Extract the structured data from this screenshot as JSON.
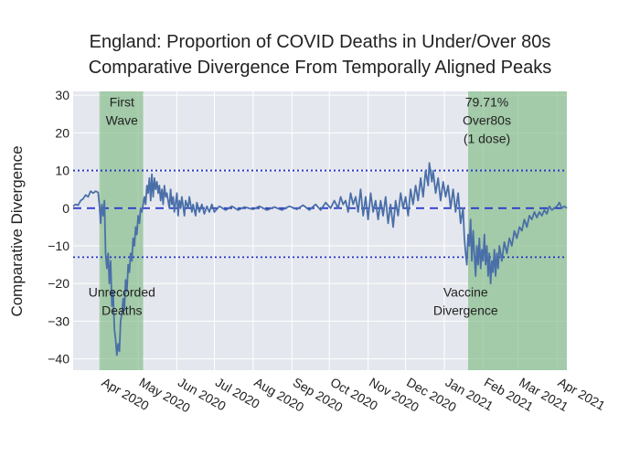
{
  "chart_data": {
    "type": "line",
    "title": [
      "England: Proportion of COVID Deaths in Under/Over 80s",
      "Comparative Divergence From Temporally Aligned Peaks"
    ],
    "ylabel": "Comparative Divergence",
    "xlabel": "",
    "xlim": [
      "2020-03-10",
      "2021-04-09"
    ],
    "ylim": [
      -43,
      31
    ],
    "yticks": [
      30,
      20,
      10,
      0,
      -10,
      -20,
      -30,
      -40
    ],
    "xticks": [
      {
        "date": "2020-04-01",
        "label": "Apr 2020"
      },
      {
        "date": "2020-05-01",
        "label": "May 2020"
      },
      {
        "date": "2020-06-01",
        "label": "Jun 2020"
      },
      {
        "date": "2020-07-01",
        "label": "Jul 2020"
      },
      {
        "date": "2020-08-01",
        "label": "Aug 2020"
      },
      {
        "date": "2020-09-01",
        "label": "Sep 2020"
      },
      {
        "date": "2020-10-01",
        "label": "Oct 2020"
      },
      {
        "date": "2020-11-01",
        "label": "Nov 2020"
      },
      {
        "date": "2020-12-01",
        "label": "Dec 2020"
      },
      {
        "date": "2021-01-01",
        "label": "Jan 2021"
      },
      {
        "date": "2021-02-01",
        "label": "Feb 2021"
      },
      {
        "date": "2021-03-01",
        "label": "Mar 2021"
      },
      {
        "date": "2021-04-01",
        "label": "Apr 2021"
      }
    ],
    "shaded_regions": [
      {
        "x0": "2020-03-31",
        "x1": "2020-05-05",
        "color": "#7ab87e"
      },
      {
        "x0": "2021-01-20",
        "x1": "2021-04-09",
        "color": "#7ab87e"
      }
    ],
    "reference_lines": [
      {
        "y": 10,
        "style": "dotted",
        "color": "#2233cc"
      },
      {
        "y": 0,
        "style": "dashed",
        "color": "#2233cc"
      },
      {
        "y": -13,
        "style": "dotted",
        "color": "#2233cc"
      }
    ],
    "annotations": [
      {
        "text": [
          "First",
          "Wave"
        ],
        "x": "2020-04-18",
        "y": 27
      },
      {
        "text": [
          "Unrecorded",
          "Deaths"
        ],
        "x": "2020-04-18",
        "y": -23.5
      },
      {
        "text": [
          "79.71%",
          "Over80s",
          "(1 dose)"
        ],
        "x": "2021-02-04",
        "y": 27
      },
      {
        "text": [
          "Vaccine",
          "Divergence"
        ],
        "x": "2021-01-18",
        "y": -23.5
      }
    ],
    "series": [
      {
        "color": "#4a6fa8",
        "points": [
          [
            "2020-03-10",
            0.5
          ],
          [
            "2020-03-12",
            1
          ],
          [
            "2020-03-14",
            0.8
          ],
          [
            "2020-03-16",
            2
          ],
          [
            "2020-03-18",
            2.5
          ],
          [
            "2020-03-20",
            3.5
          ],
          [
            "2020-03-22",
            3
          ],
          [
            "2020-03-24",
            4.5
          ],
          [
            "2020-03-26",
            4
          ],
          [
            "2020-03-28",
            4.5
          ],
          [
            "2020-03-30",
            4.2
          ],
          [
            "2020-03-31",
            1
          ],
          [
            "2020-04-01",
            -4
          ],
          [
            "2020-04-02",
            1
          ],
          [
            "2020-04-03",
            -2
          ],
          [
            "2020-04-04",
            2
          ],
          [
            "2020-04-05",
            -12
          ],
          [
            "2020-04-06",
            -16
          ],
          [
            "2020-04-07",
            -12
          ],
          [
            "2020-04-08",
            -20
          ],
          [
            "2020-04-09",
            -14
          ],
          [
            "2020-04-10",
            -26
          ],
          [
            "2020-04-11",
            -22
          ],
          [
            "2020-04-12",
            -32
          ],
          [
            "2020-04-13",
            -35
          ],
          [
            "2020-04-14",
            -39
          ],
          [
            "2020-04-15",
            -36
          ],
          [
            "2020-04-16",
            -38
          ],
          [
            "2020-04-17",
            -30
          ],
          [
            "2020-04-18",
            -28
          ],
          [
            "2020-04-19",
            -24
          ],
          [
            "2020-04-20",
            -27
          ],
          [
            "2020-04-21",
            -19
          ],
          [
            "2020-04-22",
            -22
          ],
          [
            "2020-04-23",
            -15
          ],
          [
            "2020-04-24",
            -17
          ],
          [
            "2020-04-25",
            -12
          ],
          [
            "2020-04-26",
            -14
          ],
          [
            "2020-04-27",
            -8
          ],
          [
            "2020-04-28",
            -10
          ],
          [
            "2020-04-29",
            -5
          ],
          [
            "2020-04-30",
            -7
          ],
          [
            "2020-05-01",
            -2
          ],
          [
            "2020-05-02",
            -4
          ],
          [
            "2020-05-03",
            0
          ],
          [
            "2020-05-04",
            -1
          ],
          [
            "2020-05-05",
            1
          ],
          [
            "2020-05-06",
            3
          ],
          [
            "2020-05-07",
            1
          ],
          [
            "2020-05-08",
            6
          ],
          [
            "2020-05-09",
            4
          ],
          [
            "2020-05-10",
            8
          ],
          [
            "2020-05-11",
            2
          ],
          [
            "2020-05-12",
            9
          ],
          [
            "2020-05-13",
            3
          ],
          [
            "2020-05-14",
            8
          ],
          [
            "2020-05-15",
            5
          ],
          [
            "2020-05-16",
            7
          ],
          [
            "2020-05-17",
            4
          ],
          [
            "2020-05-18",
            6
          ],
          [
            "2020-05-19",
            2
          ],
          [
            "2020-05-20",
            5
          ],
          [
            "2020-05-21",
            1
          ],
          [
            "2020-05-22",
            6
          ],
          [
            "2020-05-23",
            3
          ],
          [
            "2020-05-24",
            4
          ],
          [
            "2020-05-26",
            0
          ],
          [
            "2020-05-27",
            5
          ],
          [
            "2020-05-28",
            1
          ],
          [
            "2020-05-29",
            3
          ],
          [
            "2020-05-30",
            -1
          ],
          [
            "2020-06-01",
            4
          ],
          [
            "2020-06-02",
            -2
          ],
          [
            "2020-06-03",
            2
          ],
          [
            "2020-06-04",
            0
          ],
          [
            "2020-06-05",
            3
          ],
          [
            "2020-06-07",
            -2
          ],
          [
            "2020-06-08",
            2
          ],
          [
            "2020-06-10",
            0
          ],
          [
            "2020-06-11",
            3
          ],
          [
            "2020-06-13",
            -1
          ],
          [
            "2020-06-14",
            1
          ],
          [
            "2020-06-16",
            -2
          ],
          [
            "2020-06-17",
            1.5
          ],
          [
            "2020-06-19",
            -1
          ],
          [
            "2020-06-21",
            1
          ],
          [
            "2020-06-23",
            -1.5
          ],
          [
            "2020-06-25",
            0.5
          ],
          [
            "2020-06-27",
            -1
          ],
          [
            "2020-06-29",
            1
          ],
          [
            "2020-07-01",
            -1
          ],
          [
            "2020-07-05",
            0.5
          ],
          [
            "2020-07-10",
            -0.5
          ],
          [
            "2020-07-15",
            0.5
          ],
          [
            "2020-07-20",
            -0.5
          ],
          [
            "2020-07-25",
            0.3
          ],
          [
            "2020-08-01",
            -0.3
          ],
          [
            "2020-08-06",
            0.5
          ],
          [
            "2020-08-12",
            -0.5
          ],
          [
            "2020-08-18",
            0.3
          ],
          [
            "2020-08-24",
            -0.5
          ],
          [
            "2020-08-30",
            0.5
          ],
          [
            "2020-09-05",
            -0.3
          ],
          [
            "2020-09-10",
            0.8
          ],
          [
            "2020-09-15",
            -0.5
          ],
          [
            "2020-09-20",
            1
          ],
          [
            "2020-09-24",
            -0.5
          ],
          [
            "2020-09-28",
            1.5
          ],
          [
            "2020-10-02",
            0
          ],
          [
            "2020-10-05",
            2
          ],
          [
            "2020-10-08",
            0
          ],
          [
            "2020-10-10",
            3
          ],
          [
            "2020-10-12",
            1
          ],
          [
            "2020-10-14",
            2
          ],
          [
            "2020-10-16",
            -1
          ],
          [
            "2020-10-18",
            4
          ],
          [
            "2020-10-20",
            1
          ],
          [
            "2020-10-22",
            3
          ],
          [
            "2020-10-24",
            -1
          ],
          [
            "2020-10-26",
            5
          ],
          [
            "2020-10-28",
            -2
          ],
          [
            "2020-10-30",
            3
          ],
          [
            "2020-11-01",
            -3
          ],
          [
            "2020-11-03",
            4
          ],
          [
            "2020-11-05",
            -1
          ],
          [
            "2020-11-07",
            2
          ],
          [
            "2020-11-09",
            -3
          ],
          [
            "2020-11-11",
            2
          ],
          [
            "2020-11-13",
            -2
          ],
          [
            "2020-11-15",
            3
          ],
          [
            "2020-11-17",
            -4
          ],
          [
            "2020-11-19",
            1
          ],
          [
            "2020-11-21",
            -5
          ],
          [
            "2020-11-23",
            2
          ],
          [
            "2020-11-25",
            -2
          ],
          [
            "2020-11-27",
            4
          ],
          [
            "2020-11-29",
            0
          ],
          [
            "2020-12-01",
            3
          ],
          [
            "2020-12-03",
            -2
          ],
          [
            "2020-12-05",
            5
          ],
          [
            "2020-12-07",
            1
          ],
          [
            "2020-12-09",
            6
          ],
          [
            "2020-12-11",
            2
          ],
          [
            "2020-12-13",
            8
          ],
          [
            "2020-12-15",
            3
          ],
          [
            "2020-12-17",
            10
          ],
          [
            "2020-12-19",
            6
          ],
          [
            "2020-12-20",
            12
          ],
          [
            "2020-12-22",
            7
          ],
          [
            "2020-12-23",
            10
          ],
          [
            "2020-12-25",
            4
          ],
          [
            "2020-12-27",
            8
          ],
          [
            "2020-12-29",
            2
          ],
          [
            "2020-12-31",
            7
          ],
          [
            "2021-01-02",
            3
          ],
          [
            "2021-01-04",
            6
          ],
          [
            "2021-01-06",
            0
          ],
          [
            "2021-01-08",
            5
          ],
          [
            "2021-01-10",
            -1
          ],
          [
            "2021-01-12",
            4
          ],
          [
            "2021-01-14",
            -4
          ],
          [
            "2021-01-16",
            0
          ],
          [
            "2021-01-17",
            -8
          ],
          [
            "2021-01-18",
            -12
          ],
          [
            "2021-01-19",
            -15
          ],
          [
            "2021-01-20",
            -7
          ],
          [
            "2021-01-21",
            -10
          ],
          [
            "2021-01-22",
            -3
          ],
          [
            "2021-01-23",
            -14
          ],
          [
            "2021-01-24",
            -6
          ],
          [
            "2021-01-25",
            -12
          ],
          [
            "2021-01-26",
            -18
          ],
          [
            "2021-01-27",
            -10
          ],
          [
            "2021-01-28",
            -15
          ],
          [
            "2021-01-29",
            -8
          ],
          [
            "2021-01-30",
            -16
          ],
          [
            "2021-01-31",
            -11
          ],
          [
            "2021-02-01",
            -14
          ],
          [
            "2021-02-02",
            -7
          ],
          [
            "2021-02-03",
            -15
          ],
          [
            "2021-02-04",
            -10
          ],
          [
            "2021-02-05",
            -18
          ],
          [
            "2021-02-06",
            -12
          ],
          [
            "2021-02-07",
            -20
          ],
          [
            "2021-02-08",
            -14
          ],
          [
            "2021-02-09",
            -17
          ],
          [
            "2021-02-10",
            -11
          ],
          [
            "2021-02-11",
            -18
          ],
          [
            "2021-02-12",
            -12
          ],
          [
            "2021-02-13",
            -16
          ],
          [
            "2021-02-14",
            -10
          ],
          [
            "2021-02-16",
            -14
          ],
          [
            "2021-02-18",
            -9
          ],
          [
            "2021-02-20",
            -12
          ],
          [
            "2021-02-22",
            -8
          ],
          [
            "2021-02-24",
            -10
          ],
          [
            "2021-02-26",
            -6
          ],
          [
            "2021-02-28",
            -8
          ],
          [
            "2021-03-02",
            -5
          ],
          [
            "2021-03-04",
            -6
          ],
          [
            "2021-03-06",
            -3
          ],
          [
            "2021-03-08",
            -5
          ],
          [
            "2021-03-10",
            -2
          ],
          [
            "2021-03-12",
            -3
          ],
          [
            "2021-03-14",
            -1
          ],
          [
            "2021-03-16",
            -2.5
          ],
          [
            "2021-03-18",
            -1
          ],
          [
            "2021-03-20",
            -2
          ],
          [
            "2021-03-22",
            -0.5
          ],
          [
            "2021-03-24",
            -1.5
          ],
          [
            "2021-03-26",
            0.5
          ],
          [
            "2021-03-28",
            -0.5
          ],
          [
            "2021-03-30",
            0
          ],
          [
            "2021-04-01",
            0.5
          ],
          [
            "2021-04-03",
            1.5
          ],
          [
            "2021-04-05",
            0
          ],
          [
            "2021-04-07",
            0.5
          ],
          [
            "2021-04-09",
            0
          ]
        ]
      }
    ]
  }
}
